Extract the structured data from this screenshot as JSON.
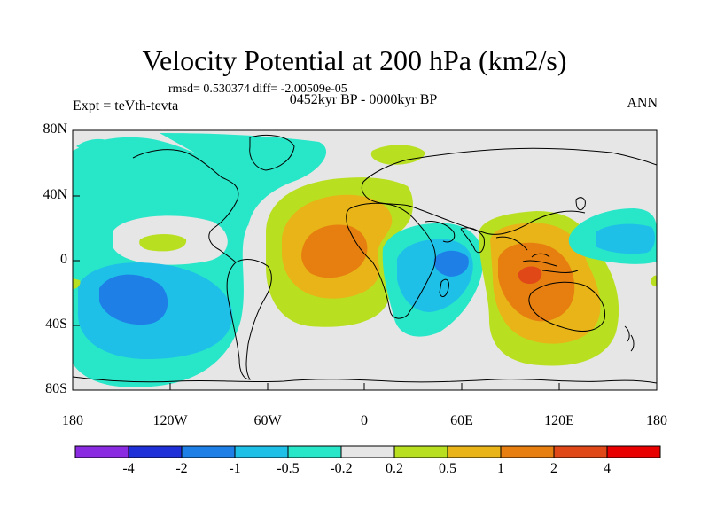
{
  "title": "Velocity Potential at 200 hPa (km2/s)",
  "stats": "rmsd= 0.530374 diff= -2.00509e-05",
  "experiment": "Expt = teVth-tevta",
  "period": "0452kyr BP - 0000kyr BP",
  "season": "ANN",
  "y_axis_labels": [
    "80N",
    "40N",
    "0",
    "40S",
    "80S"
  ],
  "x_axis_labels": [
    "180",
    "120W",
    "60W",
    "0",
    "60E",
    "120E",
    "180"
  ],
  "colorbar_labels": [
    "-4",
    "-2",
    "-1",
    "-0.5",
    "-0.2",
    "0.2",
    "0.5",
    "1",
    "2",
    "4"
  ],
  "colorbar_colors": [
    "#8a2be2",
    "#2030d8",
    "#1e80e6",
    "#1ec0e8",
    "#28e6c8",
    "#e6e6e6",
    "#b8e020",
    "#e8b418",
    "#e67e10",
    "#e04818",
    "#e80000"
  ],
  "colors": {
    "land_outline": "#000000",
    "zero_contour": "#e6e6e6"
  }
}
